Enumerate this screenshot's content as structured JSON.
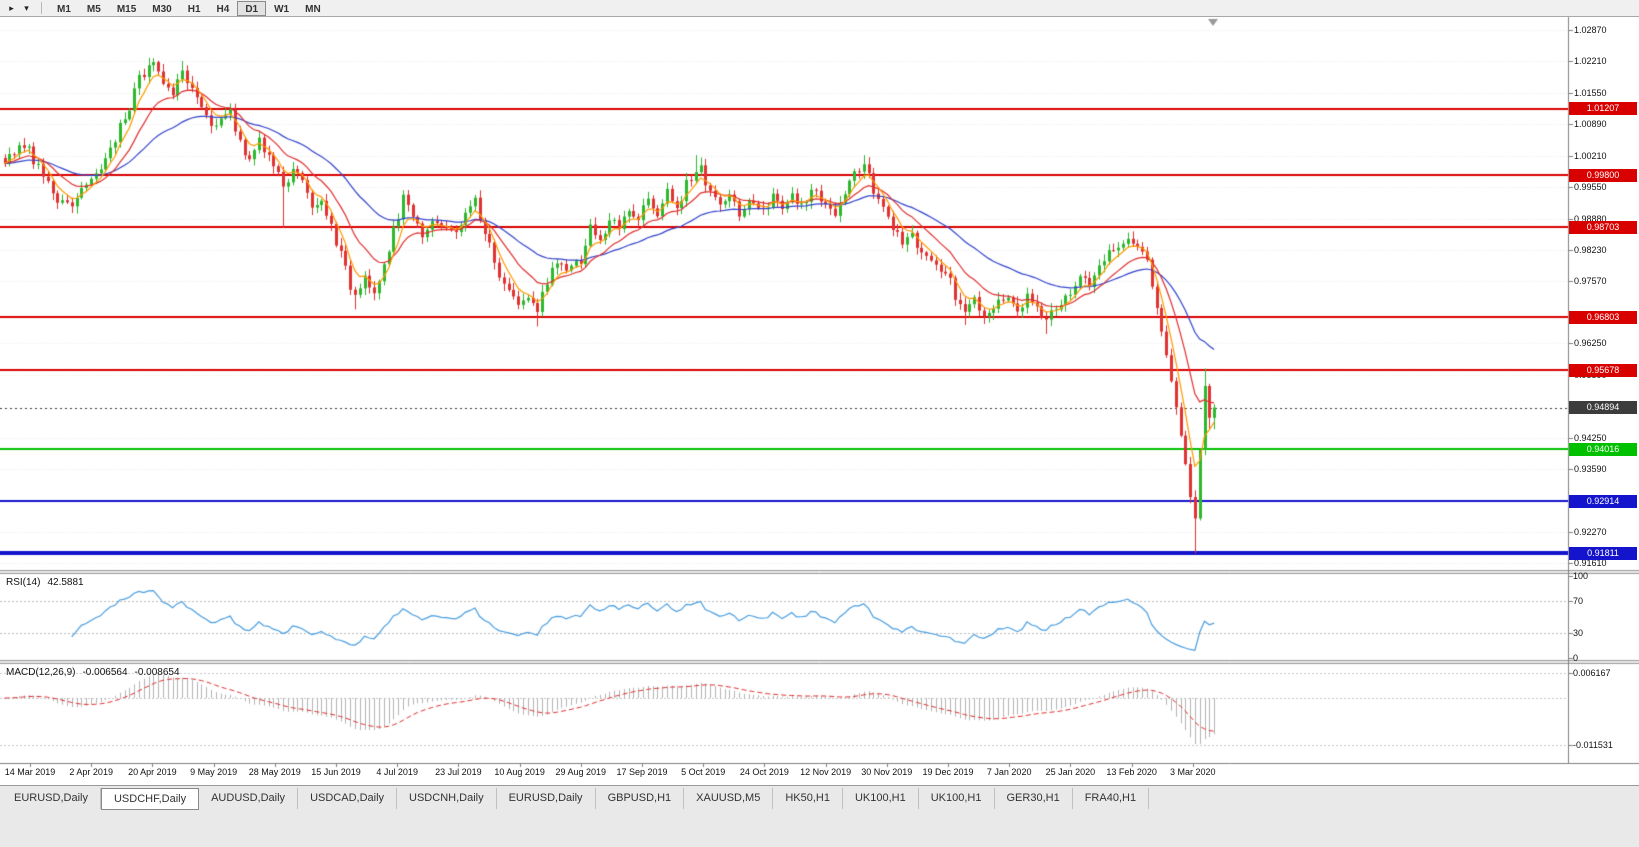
{
  "toolbar": {
    "timeframes": [
      "M1",
      "M5",
      "M15",
      "M30",
      "H1",
      "H4",
      "D1",
      "W1",
      "MN"
    ],
    "active_timeframe": "D1"
  },
  "chart": {
    "symbol_period": "USDCHF,Daily",
    "open": "0.94677",
    "high": "0.94964",
    "low": "0.94434",
    "close": "0.94894"
  },
  "rsi": {
    "label": "RSI(14)",
    "value": "42.5881",
    "axis": [
      "100",
      "70",
      "30",
      "0"
    ]
  },
  "macd": {
    "label": "MACD(12,26,9)",
    "value_main": "-0.006564",
    "value_signal": "-0.008654",
    "axis_max": "0.006167",
    "axis_min": "-0.011531"
  },
  "price_axis": {
    "ticks": [
      "1.02870",
      "1.02210",
      "1.01550",
      "1.00890",
      "1.00210",
      "0.99550",
      "0.98880",
      "0.98230",
      "0.97570",
      "0.96250",
      "0.95590",
      "0.94250",
      "0.93590",
      "0.92270",
      "0.91610"
    ],
    "current_price": "0.94894",
    "current_price_color": "#3c3c3c"
  },
  "chart_data": {
    "type": "candlestick",
    "symbol": "USDCHF",
    "period": "Daily",
    "bar_count": 253,
    "price_range_view": [
      0.9146,
      1.0315
    ],
    "last_bar": {
      "open": 0.94677,
      "high": 0.94964,
      "low": 0.94434,
      "close": 0.94894
    },
    "x_labels": [
      "14 Mar 2019",
      "2 Apr 2019",
      "20 Apr 2019",
      "9 May 2019",
      "28 May 2019",
      "15 Jun 2019",
      "4 Jul 2019",
      "23 Jul 2019",
      "10 Aug 2019",
      "29 Aug 2019",
      "17 Sep 2019",
      "5 Oct 2019",
      "24 Oct 2019",
      "12 Nov 2019",
      "30 Nov 2019",
      "19 Dec 2019",
      "7 Jan 2020",
      "25 Jan 2020",
      "13 Feb 2020",
      "3 Mar 2020"
    ],
    "close_path_anchors": [
      [
        0,
        1.0005
      ],
      [
        3,
        1.004
      ],
      [
        5,
        1.0035
      ],
      [
        8,
        0.9975
      ],
      [
        11,
        0.993
      ],
      [
        14,
        0.992
      ],
      [
        16,
        0.996
      ],
      [
        18,
        0.9975
      ],
      [
        20,
        1.0
      ],
      [
        22,
        1.003
      ],
      [
        24,
        1.008
      ],
      [
        26,
        1.013
      ],
      [
        28,
        1.0185
      ],
      [
        30,
        1.0205
      ],
      [
        31,
        1.022
      ],
      [
        33,
        1.017
      ],
      [
        35,
        1.015
      ],
      [
        37,
        1.02
      ],
      [
        39,
        1.0165
      ],
      [
        41,
        1.012
      ],
      [
        43,
        1.0085
      ],
      [
        45,
        1.01
      ],
      [
        47,
        1.0115
      ],
      [
        49,
        1.0045
      ],
      [
        51,
        1.002
      ],
      [
        53,
        1.0055
      ],
      [
        56,
        1.0
      ],
      [
        58,
        0.995
      ],
      [
        60,
        1.0
      ],
      [
        62,
        0.996
      ],
      [
        64,
        0.9905
      ],
      [
        66,
        0.992
      ],
      [
        68,
        0.9875
      ],
      [
        71,
        0.978
      ],
      [
        73,
        0.9725
      ],
      [
        75,
        0.9775
      ],
      [
        77,
        0.973
      ],
      [
        79,
        0.98
      ],
      [
        81,
        0.986
      ],
      [
        83,
        0.993
      ],
      [
        85,
        0.99
      ],
      [
        87,
        0.9855
      ],
      [
        89,
        0.989
      ],
      [
        91,
        0.987
      ],
      [
        94,
        0.9865
      ],
      [
        96,
        0.9905
      ],
      [
        98,
        0.9935
      ],
      [
        100,
        0.986
      ],
      [
        102,
        0.979
      ],
      [
        104,
        0.9745
      ],
      [
        107,
        0.9705
      ],
      [
        109,
        0.972
      ],
      [
        111,
        0.9685
      ],
      [
        113,
        0.9755
      ],
      [
        115,
        0.98
      ],
      [
        117,
        0.978
      ],
      [
        120,
        0.98
      ],
      [
        122,
        0.987
      ],
      [
        124,
        0.9845
      ],
      [
        126,
        0.989
      ],
      [
        128,
        0.9865
      ],
      [
        130,
        0.9905
      ],
      [
        132,
        0.989
      ],
      [
        134,
        0.9925
      ],
      [
        136,
        0.9895
      ],
      [
        138,
        0.9945
      ],
      [
        140,
        0.9915
      ],
      [
        142,
        0.996
      ],
      [
        144,
        0.999
      ],
      [
        145,
        0.9995
      ],
      [
        147,
        0.9945
      ],
      [
        149,
        0.9915
      ],
      [
        151,
        0.9935
      ],
      [
        153,
        0.9895
      ],
      [
        155,
        0.9925
      ],
      [
        158,
        0.9905
      ],
      [
        160,
        0.9935
      ],
      [
        162,
        0.9905
      ],
      [
        164,
        0.994
      ],
      [
        166,
        0.9915
      ],
      [
        168,
        0.995
      ],
      [
        171,
        0.9925
      ],
      [
        173,
        0.9895
      ],
      [
        175,
        0.9945
      ],
      [
        177,
        0.9985
      ],
      [
        179,
        1.0
      ],
      [
        181,
        0.995
      ],
      [
        183,
        0.9905
      ],
      [
        185,
        0.987
      ],
      [
        187,
        0.9835
      ],
      [
        189,
        0.9855
      ],
      [
        191,
        0.9815
      ],
      [
        193,
        0.9795
      ],
      [
        196,
        0.9775
      ],
      [
        198,
        0.973
      ],
      [
        200,
        0.969
      ],
      [
        202,
        0.9725
      ],
      [
        204,
        0.9685
      ],
      [
        206,
        0.9705
      ],
      [
        209,
        0.972
      ],
      [
        211,
        0.969
      ],
      [
        213,
        0.9725
      ],
      [
        215,
        0.97
      ],
      [
        217,
        0.9675
      ],
      [
        219,
        0.9705
      ],
      [
        222,
        0.973
      ],
      [
        224,
        0.9765
      ],
      [
        226,
        0.9745
      ],
      [
        228,
        0.9785
      ],
      [
        230,
        0.9815
      ],
      [
        232,
        0.9835
      ],
      [
        234,
        0.9845
      ],
      [
        236,
        0.9825
      ],
      [
        238,
        0.9795
      ],
      [
        239,
        0.9745
      ],
      [
        240,
        0.97
      ],
      [
        241,
        0.965
      ],
      [
        242,
        0.96
      ],
      [
        243,
        0.9545
      ],
      [
        244,
        0.949
      ],
      [
        245,
        0.943
      ],
      [
        246,
        0.937
      ],
      [
        247,
        0.93
      ],
      [
        248,
        0.9255
      ],
      [
        249,
        0.94
      ],
      [
        250,
        0.9535
      ],
      [
        251,
        0.9468
      ],
      [
        252,
        0.94894
      ]
    ],
    "wick_extremes": [
      {
        "i": 31,
        "high": 1.0228
      },
      {
        "i": 37,
        "high": 1.0222
      },
      {
        "i": 58,
        "low": 0.9869
      },
      {
        "i": 73,
        "low": 0.9697
      },
      {
        "i": 111,
        "low": 0.9661
      },
      {
        "i": 144,
        "high": 1.0023
      },
      {
        "i": 145,
        "high": 1.0018
      },
      {
        "i": 179,
        "high": 1.0023
      },
      {
        "i": 200,
        "low": 0.9664
      },
      {
        "i": 217,
        "low": 0.9645
      },
      {
        "i": 248,
        "low": 0.9181
      },
      {
        "i": 250,
        "high": 0.9572
      },
      {
        "i": 251,
        "low": 0.9445
      }
    ],
    "hlines": [
      {
        "price": 1.01207,
        "label": "1.01207",
        "color": "#d90000",
        "width": 2
      },
      {
        "price": 0.998,
        "label": "0.99800",
        "color": "#d90000",
        "width": 2
      },
      {
        "price": 0.98703,
        "label": "0.98703",
        "color": "#d90000",
        "width": 2
      },
      {
        "price": 0.96803,
        "label": "0.96803",
        "color": "#d90000",
        "width": 2
      },
      {
        "price": 0.95678,
        "label": "0.95678",
        "color": "#d90000",
        "width": 2
      },
      {
        "price": 0.94016,
        "label": "0.94016",
        "color": "#00c000",
        "width": 2
      },
      {
        "price": 0.92914,
        "label": "0.92914",
        "color": "#1414cc",
        "width": 2
      },
      {
        "price": 0.91811,
        "label": "0.91811",
        "color": "#1414cc",
        "width": 4
      }
    ],
    "current_price_line": {
      "price": 0.94894,
      "style": "dotted",
      "color": "#3c3c3c"
    },
    "moving_averages": [
      {
        "name": "fast-ma",
        "method": "EMA",
        "period": 5,
        "color": "#ff9900"
      },
      {
        "name": "mid-ma",
        "method": "EMA",
        "period": 13,
        "color": "#e03030"
      },
      {
        "name": "slow-ma",
        "method": "EMA",
        "period": 34,
        "color": "#3344cc"
      }
    ],
    "indicators": [
      {
        "type": "RSI",
        "period": 14,
        "value": 42.5881,
        "levels": [
          70,
          30
        ],
        "range": [
          0,
          100
        ],
        "color": "#4a9ee0"
      },
      {
        "type": "MACD",
        "fast": 12,
        "slow": 26,
        "signal": 9,
        "main": -0.006564,
        "signal_value": -0.008654,
        "axis_max": 0.006167,
        "axis_min": -0.011531,
        "histogram_color": "#b4b4b4",
        "signal_color": "#e03030"
      }
    ],
    "up_color": "#2eb82e",
    "down_color": "#e03232"
  },
  "tabs": {
    "items": [
      "EURUSD,Daily",
      "USDCHF,Daily",
      "AUDUSD,Daily",
      "USDCAD,Daily",
      "USDCNH,Daily",
      "EURUSD,Daily",
      "GBPUSD,H1",
      "XAUUSD,M5",
      "HK50,H1",
      "UK100,H1",
      "UK100,H1",
      "GER30,H1",
      "FRA40,H1"
    ],
    "active_index": 1
  }
}
